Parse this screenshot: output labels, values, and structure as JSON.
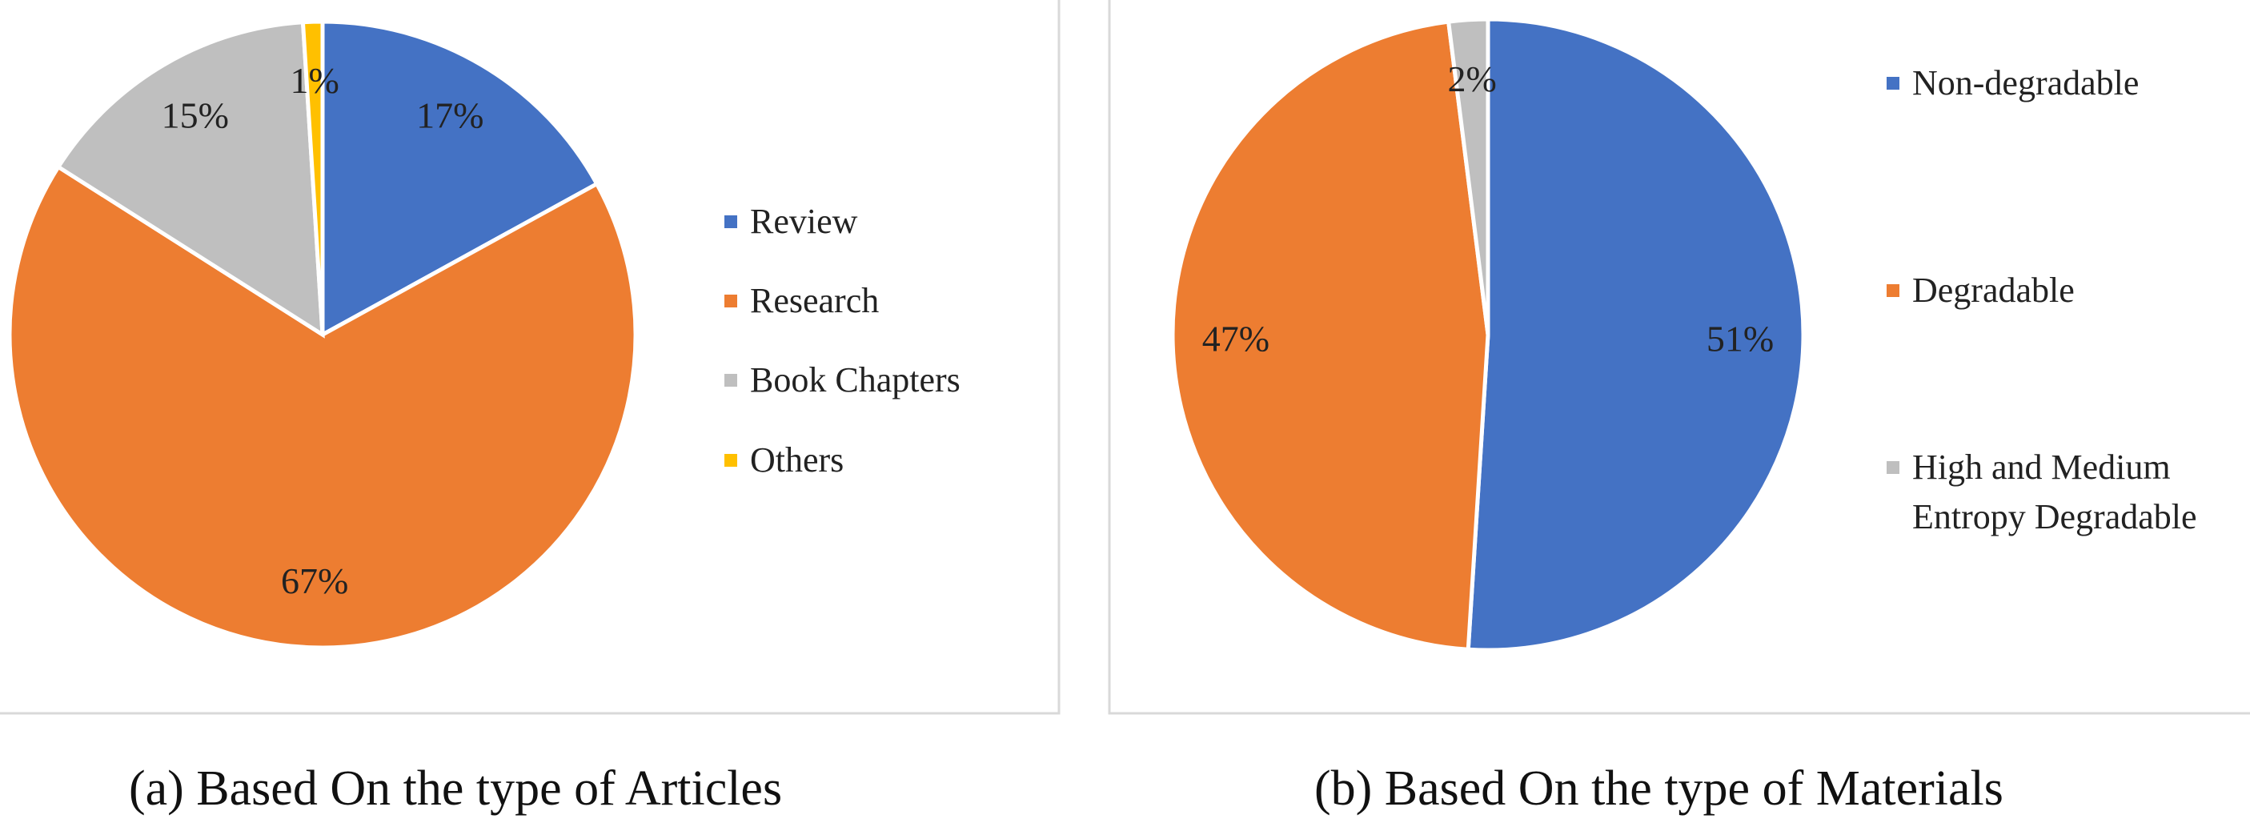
{
  "chart_data": [
    {
      "type": "pie",
      "caption": "(a)  Based On the type of Articles",
      "categories": [
        "Review",
        "Research",
        "Book Chapters",
        "Others"
      ],
      "values": [
        17,
        67,
        15,
        1
      ],
      "value_labels": [
        "17%",
        "67%",
        "15%",
        "1%"
      ],
      "colors": [
        "#4472c4",
        "#ed7d31",
        "#bfbfbf",
        "#ffc000"
      ]
    },
    {
      "type": "pie",
      "caption": "(b)  Based On the type of Materials",
      "categories": [
        "Non-degradable",
        "Degradable",
        "High and Medium Entropy Degradable"
      ],
      "values": [
        51,
        47,
        2
      ],
      "value_labels": [
        "51%",
        "47%",
        "2%"
      ],
      "colors": [
        "#4472c4",
        "#ed7d31",
        "#bfbfbf"
      ]
    }
  ]
}
